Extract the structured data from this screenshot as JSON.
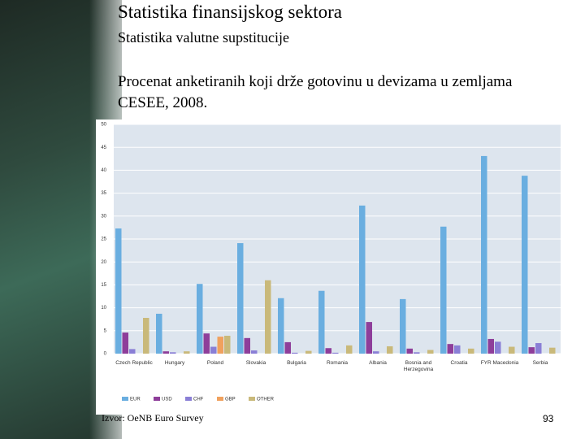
{
  "slide": {
    "title": "Statistika finansijskog sektora",
    "subtitle": "Statistika valutne supstitucije",
    "heading": "Procenat anketiranih koji drže gotovinu u devizama u zemljama CESEE, 2008.",
    "source": "Izvor: OeNB Euro Survey",
    "page_number": "93"
  },
  "chart_data": {
    "type": "bar",
    "categories": [
      "Czech Republic",
      "Hungary",
      "Poland",
      "Slovakia",
      "Bulgaria",
      "Romania",
      "Albania",
      "Bosnia and Herzegovina",
      "Croatia",
      "FYR Macedonia",
      "Serbia"
    ],
    "series": [
      {
        "name": "EUR",
        "color": "#6aaee0",
        "values": [
          27.3,
          8.7,
          15.2,
          24.1,
          12.1,
          13.7,
          32.3,
          11.9,
          27.7,
          43.1,
          38.8
        ]
      },
      {
        "name": "USD",
        "color": "#8e3e9a",
        "values": [
          4.6,
          0.5,
          4.4,
          3.4,
          2.5,
          1.2,
          6.9,
          1.1,
          2.1,
          3.2,
          1.4
        ]
      },
      {
        "name": "CHF",
        "color": "#8a7fd6",
        "values": [
          1.0,
          0.3,
          1.5,
          0.7,
          0.2,
          0.2,
          0.5,
          0.3,
          1.8,
          2.6,
          2.3
        ]
      },
      {
        "name": "GBP",
        "color": "#f0a15e",
        "values": [
          0,
          0,
          3.7,
          0,
          0,
          0,
          0,
          0,
          0,
          0,
          0
        ]
      },
      {
        "name": "OTHER",
        "color": "#c9b97a",
        "values": [
          7.8,
          0.5,
          3.9,
          16.0,
          0.6,
          1.8,
          1.6,
          0.8,
          1.1,
          1.5,
          1.3
        ]
      }
    ],
    "ylim": [
      0,
      50
    ],
    "yticks": [
      0,
      5,
      10,
      15,
      20,
      25,
      30,
      35,
      40,
      45,
      50
    ],
    "grid": true,
    "legend": "bottom-left"
  }
}
